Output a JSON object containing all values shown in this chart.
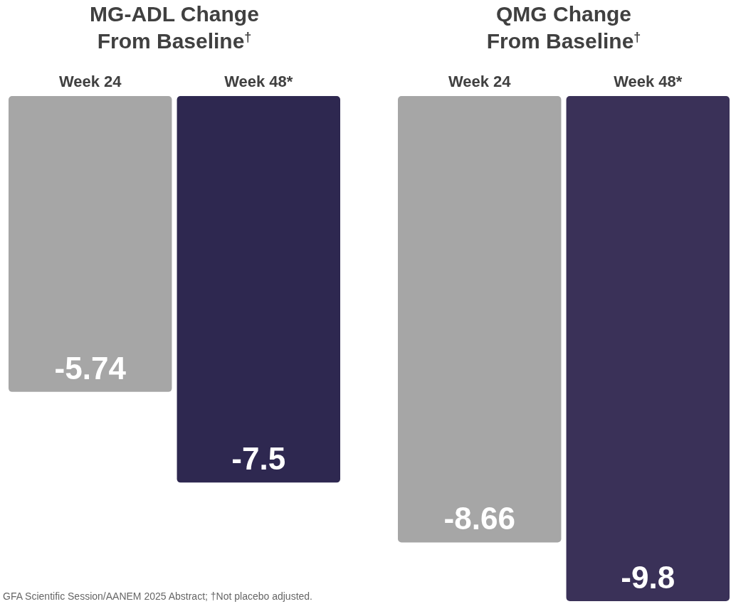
{
  "chart_data": [
    {
      "type": "bar",
      "title": "MG-ADL Change\nFrom Baseline$^{†}$",
      "categories": [
        "Week 24",
        "Week 48*"
      ],
      "values": [
        -5.74,
        -7.5
      ],
      "colors": [
        "#a6a6a6",
        "#2e2850"
      ],
      "data_labels": true,
      "annotations": [
        "GFA Scientific Session/AANEM 2025 Abstract; †Not placebo adjusted."
      ]
    },
    {
      "type": "bar",
      "title": "QMG Change\nFrom Baseline$^{†}$",
      "categories": [
        "Week 24",
        "Week 48*"
      ],
      "values": [
        -8.66,
        -9.8
      ],
      "colors": [
        "#a6a6a6",
        "#3a3158"
      ],
      "data_labels": true
    }
  ]
}
